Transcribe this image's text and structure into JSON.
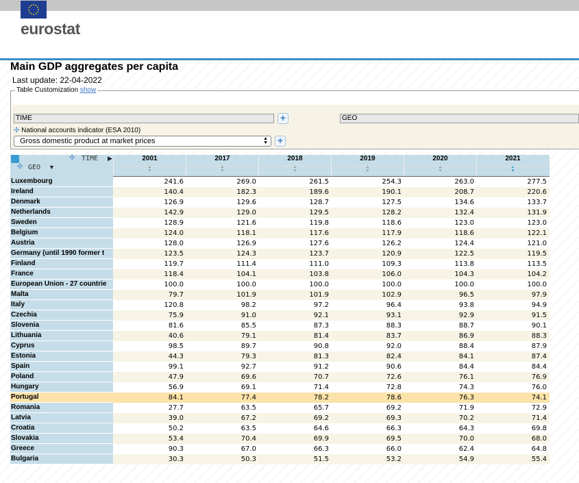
{
  "header": {
    "logo_text": "eurostat",
    "flag_icon": "eu-flag-icon"
  },
  "page": {
    "title": "Main GDP aggregates per capita",
    "last_update": "Last update: 22-04-2022"
  },
  "customization": {
    "legend_label": "Table Customization",
    "show_link": "show"
  },
  "dimensions": {
    "time_box": "TIME",
    "geo_box": "GEO",
    "indicator_label": "National accounts indicator (ESA 2010)",
    "indicator_value": "Gross domestic product at market prices"
  },
  "table": {
    "time_header": "TIME",
    "geo_header": "GEO",
    "years": [
      "2001",
      "2017",
      "2018",
      "2019",
      "2020",
      "2021"
    ],
    "active_sort_year": "2021",
    "rows": [
      {
        "geo": "Luxembourg",
        "values": [
          "241.6",
          "269.0",
          "261.5",
          "254.3",
          "263.0",
          "277.5"
        ]
      },
      {
        "geo": "Ireland",
        "values": [
          "140.4",
          "182.3",
          "189.6",
          "190.1",
          "208.7",
          "220.6"
        ]
      },
      {
        "geo": "Denmark",
        "values": [
          "126.9",
          "129.6",
          "128.7",
          "127.5",
          "134.6",
          "133.7"
        ]
      },
      {
        "geo": "Netherlands",
        "values": [
          "142.9",
          "129.0",
          "129.5",
          "128.2",
          "132.4",
          "131.9"
        ]
      },
      {
        "geo": "Sweden",
        "values": [
          "128.9",
          "121.6",
          "119.8",
          "118.6",
          "123.0",
          "123.0"
        ]
      },
      {
        "geo": "Belgium",
        "values": [
          "124.0",
          "118.1",
          "117.6",
          "117.9",
          "118.6",
          "122.1"
        ]
      },
      {
        "geo": "Austria",
        "values": [
          "128.0",
          "126.9",
          "127.6",
          "126.2",
          "124.4",
          "121.0"
        ]
      },
      {
        "geo": "Germany (until 1990 former t",
        "values": [
          "123.5",
          "124.3",
          "123.7",
          "120.9",
          "122.5",
          "119.5"
        ]
      },
      {
        "geo": "Finland",
        "values": [
          "119.7",
          "111.4",
          "111.0",
          "109.3",
          "113.8",
          "113.5"
        ]
      },
      {
        "geo": "France",
        "values": [
          "118.4",
          "104.1",
          "103.8",
          "106.0",
          "104.3",
          "104.2"
        ]
      },
      {
        "geo": "European Union - 27 countrie",
        "values": [
          "100.0",
          "100.0",
          "100.0",
          "100.0",
          "100.0",
          "100.0"
        ]
      },
      {
        "geo": "Malta",
        "values": [
          "79.7",
          "101.9",
          "101.9",
          "102.9",
          "96.5",
          "97.9"
        ]
      },
      {
        "geo": "Italy",
        "values": [
          "120.8",
          "98.2",
          "97.2",
          "96.4",
          "93.8",
          "94.9"
        ]
      },
      {
        "geo": "Czechia",
        "values": [
          "75.9",
          "91.0",
          "92.1",
          "93.1",
          "92.9",
          "91.5"
        ]
      },
      {
        "geo": "Slovenia",
        "values": [
          "81.6",
          "85.5",
          "87.3",
          "88.3",
          "88.7",
          "90.1"
        ]
      },
      {
        "geo": "Lithuania",
        "values": [
          "40.6",
          "79.1",
          "81.4",
          "83.7",
          "86.9",
          "88.3"
        ]
      },
      {
        "geo": "Cyprus",
        "values": [
          "98.5",
          "89.7",
          "90.8",
          "92.0",
          "88.4",
          "87.9"
        ]
      },
      {
        "geo": "Estonia",
        "values": [
          "44.3",
          "79.3",
          "81.3",
          "82.4",
          "84.1",
          "87.4"
        ]
      },
      {
        "geo": "Spain",
        "values": [
          "99.1",
          "92.7",
          "91.2",
          "90.6",
          "84.4",
          "84.4"
        ]
      },
      {
        "geo": "Poland",
        "values": [
          "47.9",
          "69.6",
          "70.7",
          "72.6",
          "76.1",
          "76.9"
        ]
      },
      {
        "geo": "Hungary",
        "values": [
          "56.9",
          "69.1",
          "71.4",
          "72.8",
          "74.3",
          "76.0"
        ]
      },
      {
        "geo": "Portugal",
        "values": [
          "84.1",
          "77.4",
          "78.2",
          "78.6",
          "76.3",
          "74.1"
        ],
        "highlight": true
      },
      {
        "geo": "Romania",
        "values": [
          "27.7",
          "63.5",
          "65.7",
          "69.2",
          "71.9",
          "72.9"
        ]
      },
      {
        "geo": "Latvia",
        "values": [
          "39.0",
          "67.2",
          "69.2",
          "69.3",
          "70.2",
          "71.4"
        ]
      },
      {
        "geo": "Croatia",
        "values": [
          "50.2",
          "63.5",
          "64.6",
          "66.3",
          "64.3",
          "69.8"
        ]
      },
      {
        "geo": "Slovakia",
        "values": [
          "53.4",
          "70.4",
          "69.9",
          "69.5",
          "70.0",
          "68.0"
        ]
      },
      {
        "geo": "Greece",
        "values": [
          "90.3",
          "67.0",
          "66.3",
          "66.0",
          "62.4",
          "64.8"
        ]
      },
      {
        "geo": "Bulgaria",
        "values": [
          "30.3",
          "50.3",
          "51.5",
          "53.2",
          "54.9",
          "55.4"
        ]
      }
    ]
  }
}
